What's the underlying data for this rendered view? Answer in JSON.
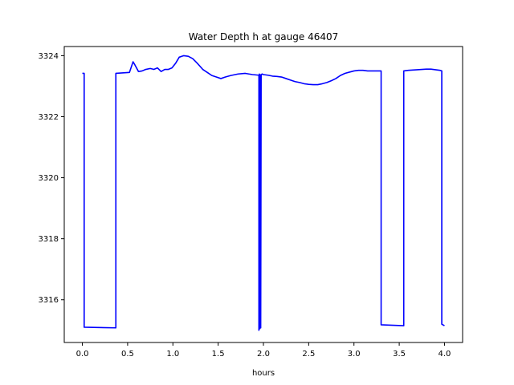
{
  "chart_data": {
    "type": "line",
    "title": "Water Depth h at gauge 46407",
    "xlabel": "hours",
    "ylabel": "",
    "xlim": [
      -0.2,
      4.2
    ],
    "ylim": [
      3314.6,
      3324.3
    ],
    "xticks": [
      0.0,
      0.5,
      1.0,
      1.5,
      2.0,
      2.5,
      3.0,
      3.5,
      4.0
    ],
    "xtick_labels": [
      "0.0",
      "0.5",
      "1.0",
      "1.5",
      "2.0",
      "2.5",
      "3.0",
      "3.5",
      "4.0"
    ],
    "yticks": [
      3316,
      3318,
      3320,
      3322,
      3324
    ],
    "ytick_labels": [
      "3316",
      "3318",
      "3320",
      "3322",
      "3324"
    ],
    "grid": false,
    "legend": "none",
    "series": [
      {
        "color": "#0000ff",
        "x": [
          0.0,
          0.02,
          0.02,
          0.37,
          0.37,
          0.52,
          0.56,
          0.58,
          0.62,
          0.66,
          0.7,
          0.75,
          0.79,
          0.83,
          0.87,
          0.91,
          0.95,
          0.99,
          1.03,
          1.07,
          1.12,
          1.17,
          1.22,
          1.27,
          1.33,
          1.38,
          1.43,
          1.48,
          1.53,
          1.58,
          1.64,
          1.72,
          1.8,
          1.88,
          1.95,
          1.95,
          1.955,
          1.96,
          1.965,
          1.97,
          1.975,
          1.985,
          2.0,
          2.05,
          2.1,
          2.15,
          2.2,
          2.25,
          2.3,
          2.35,
          2.4,
          2.45,
          2.5,
          2.55,
          2.6,
          2.65,
          2.7,
          2.75,
          2.8,
          2.85,
          2.9,
          2.95,
          3.0,
          3.05,
          3.1,
          3.15,
          3.2,
          3.25,
          3.3,
          3.3,
          3.55,
          3.55,
          3.6,
          3.7,
          3.8,
          3.85,
          3.9,
          3.95,
          3.97,
          3.97,
          4.0
        ],
        "y": [
          3323.42,
          3323.42,
          3315.1,
          3315.08,
          3323.42,
          3323.45,
          3323.8,
          3323.7,
          3323.48,
          3323.5,
          3323.55,
          3323.58,
          3323.55,
          3323.6,
          3323.48,
          3323.55,
          3323.55,
          3323.6,
          3323.75,
          3323.95,
          3324.0,
          3323.98,
          3323.9,
          3323.75,
          3323.55,
          3323.45,
          3323.35,
          3323.3,
          3323.25,
          3323.3,
          3323.35,
          3323.4,
          3323.42,
          3323.38,
          3323.36,
          3315.0,
          3323.4,
          3315.05,
          3323.38,
          3315.08,
          3323.37,
          3323.4,
          3323.38,
          3323.36,
          3323.33,
          3323.32,
          3323.3,
          3323.25,
          3323.2,
          3323.15,
          3323.12,
          3323.08,
          3323.06,
          3323.05,
          3323.05,
          3323.08,
          3323.12,
          3323.18,
          3323.25,
          3323.35,
          3323.42,
          3323.46,
          3323.5,
          3323.52,
          3323.52,
          3323.5,
          3323.5,
          3323.5,
          3323.5,
          3315.18,
          3315.15,
          3323.5,
          3323.52,
          3323.54,
          3323.56,
          3323.56,
          3323.54,
          3323.52,
          3323.5,
          3315.2,
          3315.15
        ]
      }
    ]
  }
}
